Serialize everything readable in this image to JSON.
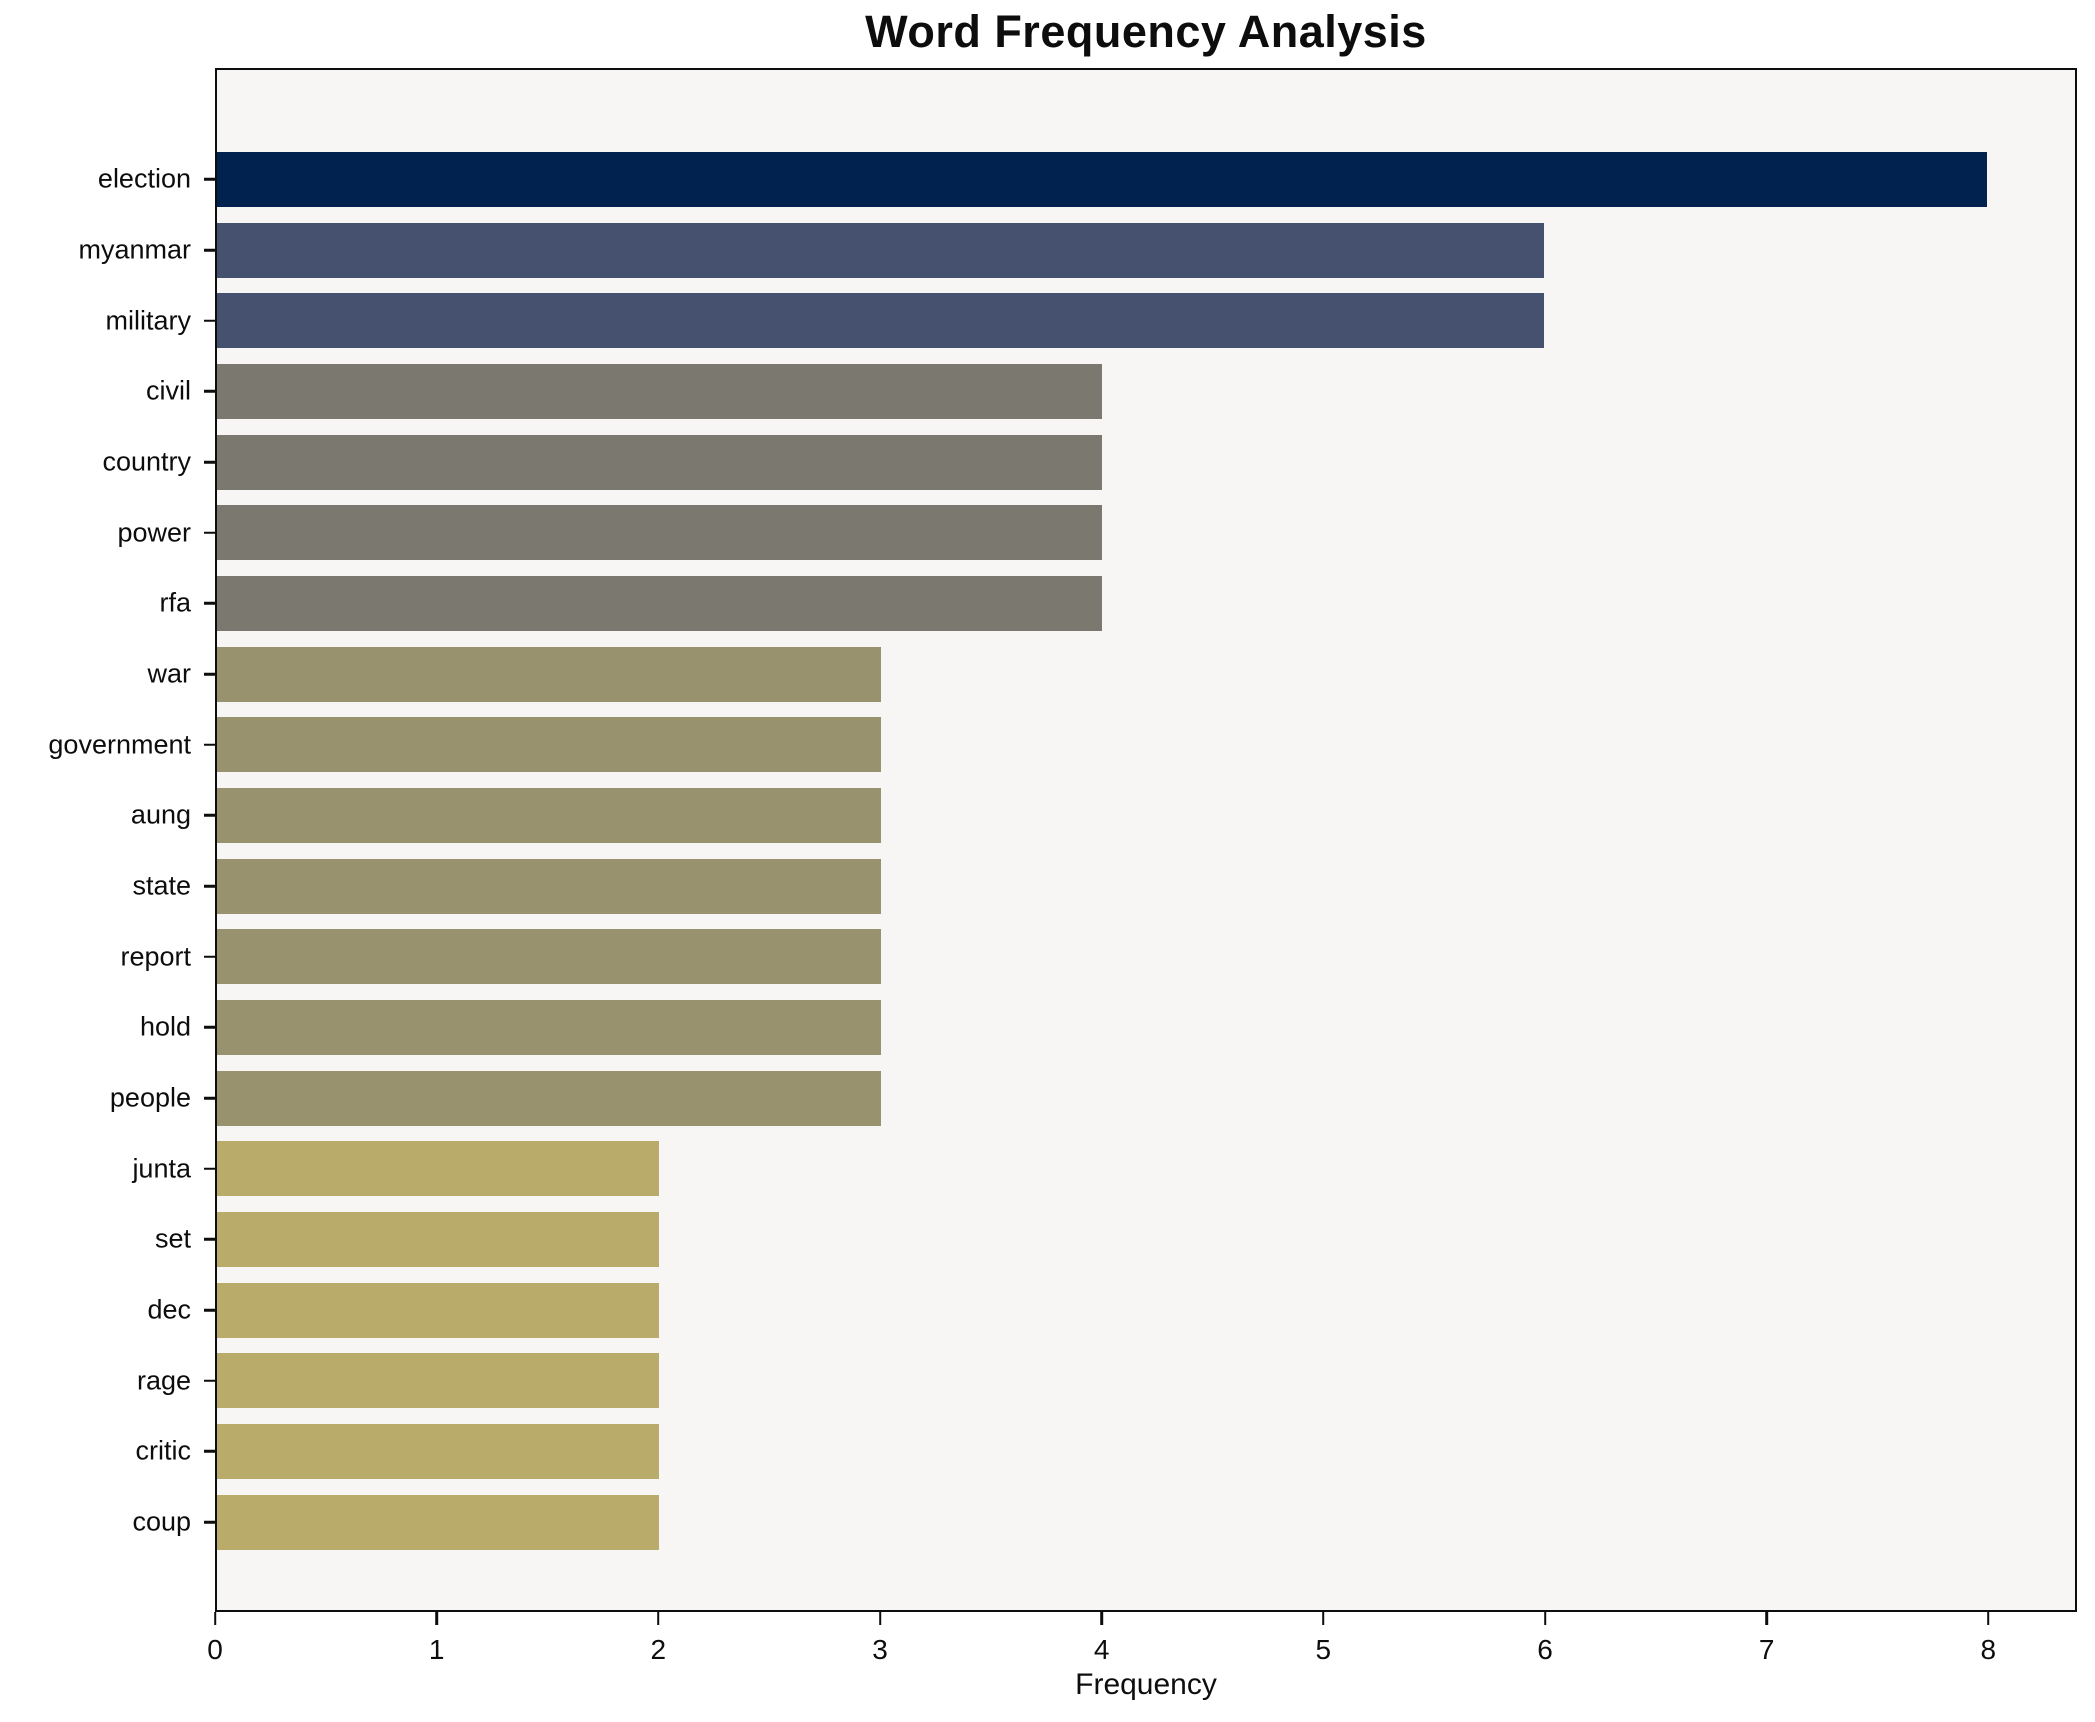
{
  "chart_data": {
    "type": "bar",
    "orientation": "horizontal",
    "title": "Word Frequency Analysis",
    "xlabel": "Frequency",
    "ylabel": "",
    "categories": [
      "election",
      "myanmar",
      "military",
      "civil",
      "country",
      "power",
      "rfa",
      "war",
      "government",
      "aung",
      "state",
      "report",
      "hold",
      "people",
      "junta",
      "set",
      "dec",
      "rage",
      "critic",
      "coup"
    ],
    "values": [
      8,
      6,
      6,
      4,
      4,
      4,
      4,
      3,
      3,
      3,
      3,
      3,
      3,
      3,
      2,
      2,
      2,
      2,
      2,
      2
    ],
    "xticks": [
      0,
      1,
      2,
      3,
      4,
      5,
      6,
      7,
      8
    ],
    "xlim": [
      0,
      8.4
    ],
    "grid": false,
    "legend": null,
    "value_colors": {
      "8": "#01224e",
      "6": "#45516e",
      "4": "#7b7870",
      "3": "#99926f",
      "2": "#b9ab69"
    },
    "plot_background": "#f7f6f5",
    "figure_background": "#ffffff",
    "spine_color": "#0d0d0d"
  }
}
